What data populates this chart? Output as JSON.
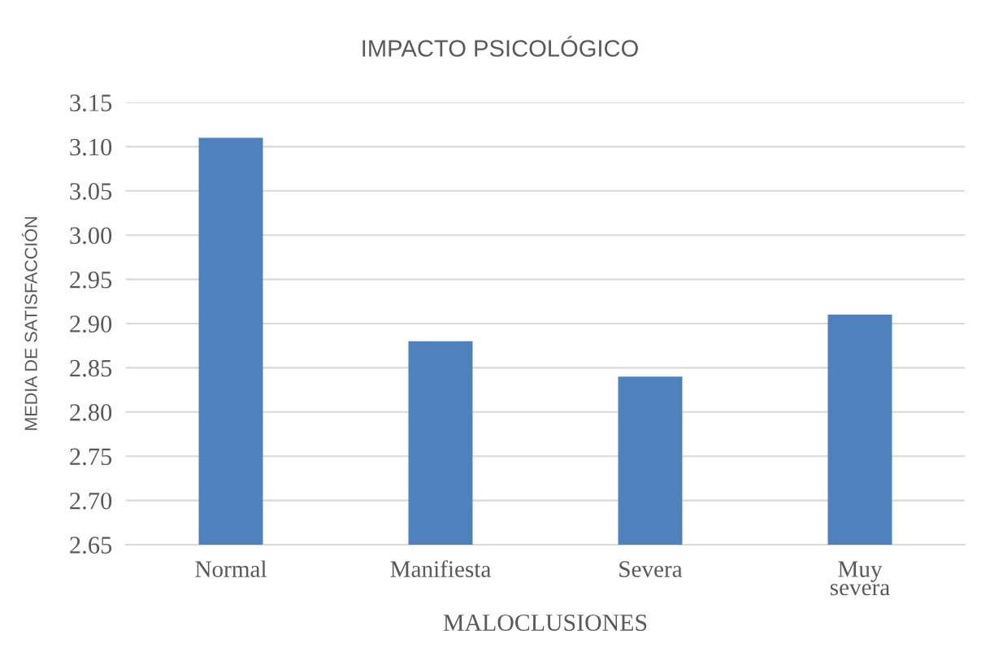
{
  "chart_data": {
    "type": "bar",
    "title": "IMPACTO PSICOLÓGICO",
    "xlabel": "MALOCLUSIONES",
    "ylabel": "MEDIA DE SATISFACCIÓN",
    "categories": [
      "Normal",
      "Manifiesta",
      "Severa",
      "Muy\nsevera"
    ],
    "values": [
      3.11,
      2.88,
      2.84,
      2.91
    ],
    "color": "#4f81bd",
    "ylim": [
      2.65,
      3.15
    ],
    "yticks": [
      2.65,
      {
        "value": 2.7,
        "label": "2.70"
      },
      2.75,
      {
        "value": 2.8,
        "label": "2.80"
      },
      2.85,
      {
        "value": 2.9,
        "label": "2.90"
      },
      2.95,
      {
        "value": 3.0,
        "label": "3.00"
      },
      3.05,
      {
        "value": 3.1,
        "label": "3.10"
      },
      3.15
    ],
    "grid": "y"
  }
}
